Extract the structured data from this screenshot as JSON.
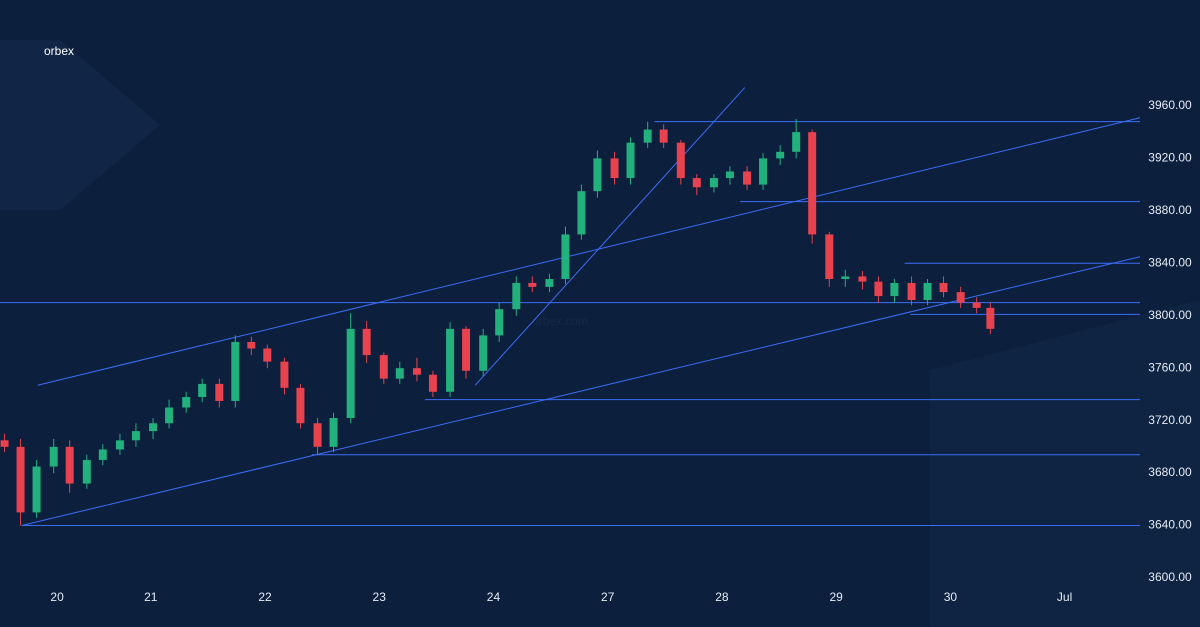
{
  "chart_data": {
    "type": "candlestick",
    "logo": "orbex",
    "watermark": "orbex.com",
    "x": [
      -0.28,
      -0.14,
      0.0,
      0.15,
      0.29,
      0.44,
      0.58,
      0.73,
      0.87,
      1.02,
      1.16,
      1.31,
      1.45,
      1.6,
      1.74,
      1.88,
      2.02,
      2.17,
      2.31,
      2.46,
      2.6,
      2.75,
      2.89,
      3.04,
      3.18,
      3.33,
      3.47,
      3.62,
      3.76,
      3.91,
      4.05,
      4.2,
      4.34,
      4.49,
      4.63,
      4.77,
      4.91,
      5.06,
      5.2,
      5.35,
      5.49,
      5.64,
      5.78,
      5.93,
      6.07,
      6.22,
      6.36,
      6.51,
      6.65,
      6.79,
      6.94,
      7.08,
      7.23,
      7.37,
      7.51,
      7.66,
      7.8,
      7.94,
      8.09,
      8.23,
      8.35
    ],
    "open": [
      3705,
      3700,
      3650,
      3685,
      3700,
      3672,
      3690,
      3698,
      3705,
      3712,
      3718,
      3730,
      3738,
      3748,
      3735,
      3780,
      3775,
      3765,
      3745,
      3718,
      3700,
      3722,
      3790,
      3770,
      3752,
      3760,
      3755,
      3742,
      3790,
      3758,
      3785,
      3805,
      3825,
      3822,
      3828,
      3862,
      3895,
      3920,
      3905,
      3932,
      3942,
      3932,
      3905,
      3898,
      3905,
      3910,
      3900,
      3920,
      3925,
      3940,
      3862,
      3828,
      3830,
      3826,
      3815,
      3825,
      3812,
      3825,
      3818,
      3810,
      3806
    ],
    "close": [
      3700,
      3650,
      3685,
      3700,
      3672,
      3690,
      3698,
      3705,
      3712,
      3718,
      3730,
      3738,
      3748,
      3735,
      3780,
      3775,
      3765,
      3745,
      3718,
      3700,
      3722,
      3790,
      3770,
      3752,
      3760,
      3755,
      3742,
      3790,
      3758,
      3785,
      3805,
      3825,
      3822,
      3828,
      3862,
      3895,
      3920,
      3905,
      3932,
      3942,
      3932,
      3905,
      3898,
      3905,
      3910,
      3900,
      3920,
      3925,
      3940,
      3862,
      3828,
      3830,
      3826,
      3815,
      3825,
      3812,
      3825,
      3818,
      3810,
      3806,
      3790
    ],
    "high": [
      3710,
      3706,
      3690,
      3706,
      3705,
      3694,
      3702,
      3710,
      3718,
      3722,
      3736,
      3742,
      3752,
      3752,
      3785,
      3784,
      3778,
      3768,
      3748,
      3722,
      3726,
      3802,
      3796,
      3772,
      3765,
      3768,
      3758,
      3795,
      3792,
      3790,
      3810,
      3830,
      3830,
      3832,
      3868,
      3900,
      3926,
      3925,
      3936,
      3948,
      3946,
      3934,
      3908,
      3908,
      3914,
      3914,
      3924,
      3930,
      3950,
      3942,
      3864,
      3835,
      3834,
      3830,
      3828,
      3830,
      3828,
      3830,
      3822,
      3814,
      3810
    ],
    "low": [
      3696,
      3640,
      3646,
      3680,
      3665,
      3668,
      3686,
      3694,
      3700,
      3706,
      3714,
      3726,
      3734,
      3730,
      3730,
      3770,
      3760,
      3740,
      3714,
      3694,
      3696,
      3718,
      3764,
      3748,
      3748,
      3750,
      3738,
      3738,
      3752,
      3754,
      3780,
      3800,
      3818,
      3818,
      3824,
      3858,
      3890,
      3900,
      3900,
      3928,
      3928,
      3900,
      3892,
      3894,
      3900,
      3896,
      3896,
      3915,
      3920,
      3855,
      3822,
      3822,
      3820,
      3810,
      3810,
      3808,
      3808,
      3814,
      3806,
      3802,
      3786
    ],
    "up_color": "#22b07d",
    "down_color": "#e8424e",
    "line_color": "#3b6ef5",
    "hlines": [
      {
        "value": 3948,
        "from": 5.41
      },
      {
        "value": 3887,
        "from": 6.16
      },
      {
        "value": 3840,
        "from": 7.6
      },
      {
        "value": 3810,
        "from": -0.32
      },
      {
        "value": 3801,
        "from": 7.65
      },
      {
        "value": 3736,
        "from": 3.4
      },
      {
        "value": 3694,
        "from": 2.41
      },
      {
        "value": 3640,
        "from": -0.13
      }
    ],
    "trendlines": [
      {
        "x": [
          0.01,
          9.66
        ],
        "y": [
          3747,
          3951
        ]
      },
      {
        "x": [
          -0.13,
          9.66
        ],
        "y": [
          3640,
          3845
        ]
      },
      {
        "x": [
          3.84,
          6.2
        ],
        "y": [
          3747,
          3974
        ]
      }
    ],
    "xlim": [
      -0.32,
      9.66
    ],
    "xticks": [
      {
        "value": 0.18,
        "label": "20"
      },
      {
        "value": 1,
        "label": "21"
      },
      {
        "value": 2,
        "label": "22"
      },
      {
        "value": 3,
        "label": "23"
      },
      {
        "value": 4,
        "label": "24"
      },
      {
        "value": 5,
        "label": "27"
      },
      {
        "value": 6,
        "label": "28"
      },
      {
        "value": 7,
        "label": "29"
      },
      {
        "value": 8,
        "label": "30"
      },
      {
        "value": 9,
        "label": "Jul"
      }
    ],
    "ylim": [
      3562.6,
      4040.8
    ],
    "yticks": [
      {
        "value": 3600,
        "label": "3600.00"
      },
      {
        "value": 3640,
        "label": "3640.00"
      },
      {
        "value": 3680,
        "label": "3680.00"
      },
      {
        "value": 3720,
        "label": "3720.00"
      },
      {
        "value": 3760,
        "label": "3760.00"
      },
      {
        "value": 3800,
        "label": "3800.00"
      },
      {
        "value": 3840,
        "label": "3840.00"
      },
      {
        "value": 3880,
        "label": "3880.00"
      },
      {
        "value": 3920,
        "label": "3920.00"
      },
      {
        "value": 3960,
        "label": "3960.00"
      }
    ]
  }
}
